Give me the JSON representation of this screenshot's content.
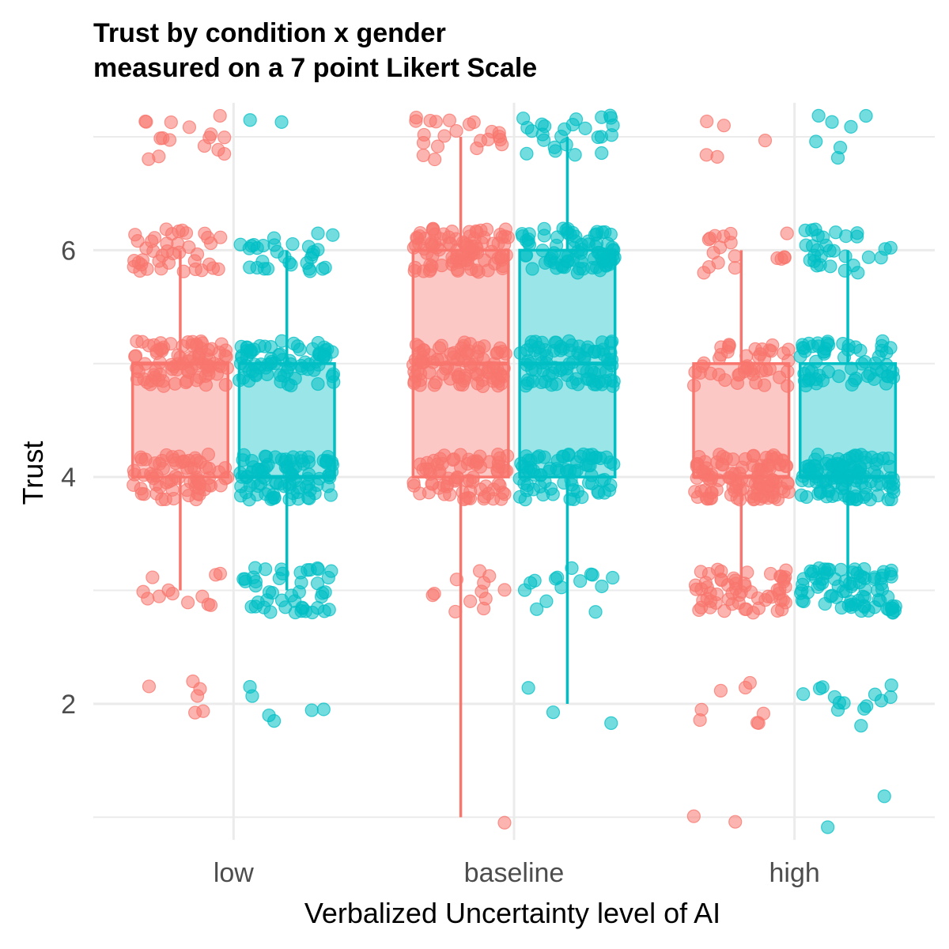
{
  "chart_data": {
    "type": "box",
    "title": "Trust by condition x gender",
    "subtitle": "measured on a 7 point Likert Scale",
    "xlabel": "Verbalized Uncertainty level of AI",
    "ylabel": "Trust",
    "categories": [
      "low",
      "baseline",
      "high"
    ],
    "y_ticks": [
      2,
      4,
      6
    ],
    "y_tick_labels": [
      "2",
      "4",
      "6"
    ],
    "ylim": [
      0.8,
      7.3
    ],
    "grid": true,
    "legend": "none",
    "colors": {
      "group_a": "#F8766D",
      "group_b": "#00BFC4"
    },
    "series": [
      {
        "color": "#F8766D",
        "boxes": [
          {
            "category": "low",
            "min": 3,
            "q1": 4,
            "median": 5,
            "q3": 5,
            "max": 6
          },
          {
            "category": "baseline",
            "min": 1,
            "q1": 4,
            "median": 5,
            "q3": 6,
            "max": 7
          },
          {
            "category": "high",
            "min": 3,
            "q1": 4,
            "median": 4,
            "q3": 5,
            "max": 6
          }
        ],
        "points": [
          {
            "category": "low",
            "counts": {
              "2": 6,
              "3": 12,
              "4": 70,
              "5": 85,
              "6": 40,
              "7": 16
            }
          },
          {
            "category": "baseline",
            "counts": {
              "1": 1,
              "3": 12,
              "4": 75,
              "5": 90,
              "6": 95,
              "7": 22
            }
          },
          {
            "category": "high",
            "counts": {
              "1": 2,
              "2": 8,
              "3": 60,
              "4": 110,
              "5": 45,
              "6": 18,
              "7": 5
            }
          }
        ]
      },
      {
        "color": "#00BFC4",
        "boxes": [
          {
            "category": "low",
            "min": 3,
            "q1": 4,
            "median": 4,
            "q3": 5,
            "max": 6
          },
          {
            "category": "baseline",
            "min": 2,
            "q1": 4,
            "median": 5,
            "q3": 6,
            "max": 7
          },
          {
            "category": "high",
            "min": 3,
            "q1": 4,
            "median": 4,
            "q3": 5,
            "max": 6
          }
        ],
        "points": [
          {
            "category": "low",
            "counts": {
              "2": 6,
              "3": 45,
              "4": 90,
              "5": 75,
              "6": 30,
              "7": 2
            }
          },
          {
            "category": "baseline",
            "counts": {
              "2": 3,
              "3": 15,
              "4": 75,
              "5": 85,
              "6": 80,
              "7": 25
            }
          },
          {
            "category": "high",
            "counts": {
              "1": 2,
              "2": 14,
              "3": 80,
              "4": 110,
              "5": 60,
              "6": 30,
              "7": 7
            }
          }
        ]
      }
    ]
  }
}
